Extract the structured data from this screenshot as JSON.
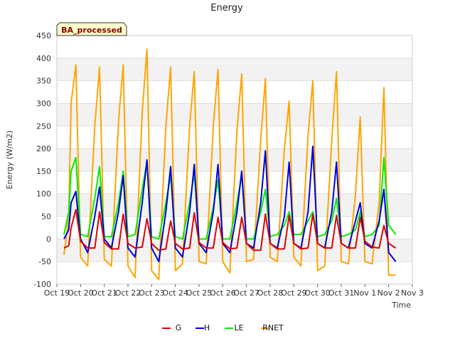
{
  "chart_data": {
    "type": "line",
    "title": "Energy",
    "xlabel": "Time",
    "ylabel": "Energy (W/m2)",
    "annotation": "BA_processed",
    "ylim": [
      -100,
      450
    ],
    "yticks": [
      -100,
      -50,
      0,
      50,
      100,
      150,
      200,
      250,
      300,
      350,
      400,
      450
    ],
    "xlim": [
      0,
      15
    ],
    "x_tick_labels": [
      "Oct 19",
      "Oct 20",
      "Oct 21",
      "Oct 22",
      "Oct 23",
      "Oct 24",
      "Oct 25",
      "Oct 26",
      "Oct 27",
      "Oct 28",
      "Oct 29",
      "Oct 30",
      "Oct 31",
      "Nov 1",
      "Nov 2",
      "Nov 3"
    ],
    "grid": true,
    "legend_position": "bottom-center",
    "series": [
      {
        "name": "G",
        "color": "#e00000",
        "x": [
          0.3,
          0.5,
          0.6,
          0.8,
          1,
          1.3,
          1.6,
          1.8,
          2,
          2.3,
          2.6,
          2.8,
          3,
          3.3,
          3.6,
          3.8,
          4,
          4.3,
          4.6,
          4.8,
          5,
          5.3,
          5.6,
          5.8,
          6,
          6.3,
          6.6,
          6.8,
          7,
          7.3,
          7.6,
          7.8,
          8,
          8.3,
          8.6,
          8.8,
          9,
          9.3,
          9.6,
          9.8,
          10,
          10.3,
          10.6,
          10.8,
          11,
          11.3,
          11.6,
          11.8,
          12,
          12.3,
          12.6,
          12.8,
          13,
          13.3,
          13.6,
          13.8,
          14,
          14.3
        ],
        "values": [
          -20,
          -15,
          25,
          65,
          -5,
          -20,
          -20,
          60,
          -8,
          -22,
          -22,
          55,
          -10,
          -20,
          -18,
          45,
          -10,
          -25,
          -22,
          40,
          -10,
          -22,
          -20,
          58,
          -8,
          -20,
          -20,
          48,
          -8,
          -22,
          -20,
          48,
          -10,
          -25,
          -25,
          55,
          -10,
          -22,
          -22,
          52,
          -10,
          -22,
          -20,
          55,
          -10,
          -20,
          -20,
          52,
          -10,
          -20,
          -20,
          48,
          -5,
          -18,
          -20,
          30,
          -10,
          -20
        ]
      },
      {
        "name": "H",
        "color": "#0000dd",
        "x": [
          0.3,
          0.5,
          0.6,
          0.8,
          1,
          1.3,
          1.6,
          1.8,
          2,
          2.3,
          2.6,
          2.8,
          3,
          3.3,
          3.6,
          3.8,
          4,
          4.3,
          4.6,
          4.8,
          5,
          5.3,
          5.6,
          5.8,
          6,
          6.3,
          6.6,
          6.8,
          7,
          7.3,
          7.6,
          7.8,
          8,
          8.3,
          8.6,
          8.8,
          9,
          9.3,
          9.6,
          9.8,
          10,
          10.3,
          10.6,
          10.8,
          11,
          11.3,
          11.6,
          11.8,
          12,
          12.3,
          12.6,
          12.8,
          13,
          13.3,
          13.6,
          13.8,
          14,
          14.3
        ],
        "values": [
          0,
          20,
          80,
          105,
          0,
          -30,
          50,
          115,
          0,
          -20,
          60,
          140,
          -20,
          -40,
          80,
          175,
          -20,
          -50,
          60,
          160,
          -20,
          -40,
          60,
          165,
          -10,
          -30,
          60,
          165,
          -10,
          -30,
          60,
          150,
          -10,
          -20,
          80,
          195,
          -10,
          -20,
          50,
          170,
          -10,
          -20,
          60,
          205,
          -10,
          -20,
          60,
          170,
          -10,
          -20,
          40,
          80,
          -10,
          -20,
          40,
          110,
          -30,
          -50
        ]
      },
      {
        "name": "LE",
        "color": "#00ee00",
        "x": [
          0.3,
          0.5,
          0.6,
          0.8,
          1,
          1.3,
          1.6,
          1.8,
          2,
          2.3,
          2.6,
          2.8,
          3,
          3.3,
          3.6,
          3.8,
          4,
          4.3,
          4.6,
          4.8,
          5,
          5.3,
          5.6,
          5.8,
          6,
          6.3,
          6.6,
          6.8,
          7,
          7.3,
          7.6,
          7.8,
          8,
          8.3,
          8.6,
          8.8,
          9,
          9.3,
          9.6,
          9.8,
          10,
          10.3,
          10.6,
          10.8,
          11,
          11.3,
          11.6,
          11.8,
          12,
          12.3,
          12.6,
          12.8,
          13,
          13.3,
          13.6,
          13.8,
          14,
          14.3
        ],
        "values": [
          10,
          60,
          150,
          180,
          10,
          5,
          90,
          160,
          5,
          5,
          80,
          150,
          5,
          10,
          110,
          170,
          5,
          0,
          80,
          140,
          5,
          0,
          80,
          145,
          0,
          0,
          70,
          130,
          0,
          0,
          80,
          140,
          0,
          0,
          60,
          110,
          5,
          10,
          30,
          60,
          10,
          10,
          40,
          60,
          5,
          10,
          40,
          90,
          5,
          10,
          20,
          60,
          5,
          10,
          30,
          180,
          30,
          10
        ]
      },
      {
        "name": "RNET",
        "color": "#ffa500",
        "x": [
          0.3,
          0.5,
          0.6,
          0.8,
          1,
          1.3,
          1.6,
          1.8,
          2,
          2.3,
          2.6,
          2.8,
          3,
          3.3,
          3.6,
          3.8,
          4,
          4.3,
          4.6,
          4.8,
          5,
          5.3,
          5.6,
          5.8,
          6,
          6.3,
          6.6,
          6.8,
          7,
          7.3,
          7.6,
          7.8,
          8,
          8.3,
          8.6,
          8.8,
          9,
          9.3,
          9.6,
          9.8,
          10,
          10.3,
          10.6,
          10.8,
          11,
          11.3,
          11.6,
          11.8,
          12,
          12.3,
          12.6,
          12.8,
          13,
          13.3,
          13.6,
          13.8,
          14,
          14.3
        ],
        "values": [
          -35,
          50,
          300,
          385,
          -40,
          -60,
          250,
          380,
          -45,
          -60,
          260,
          385,
          -60,
          -85,
          280,
          420,
          -70,
          -90,
          250,
          380,
          -70,
          -55,
          250,
          370,
          -50,
          -55,
          250,
          375,
          -50,
          -75,
          240,
          365,
          -50,
          -45,
          220,
          355,
          -40,
          -50,
          200,
          305,
          -40,
          -60,
          230,
          350,
          -70,
          -60,
          220,
          370,
          -50,
          -55,
          100,
          270,
          -50,
          -55,
          80,
          335,
          -80,
          -80
        ]
      }
    ]
  }
}
